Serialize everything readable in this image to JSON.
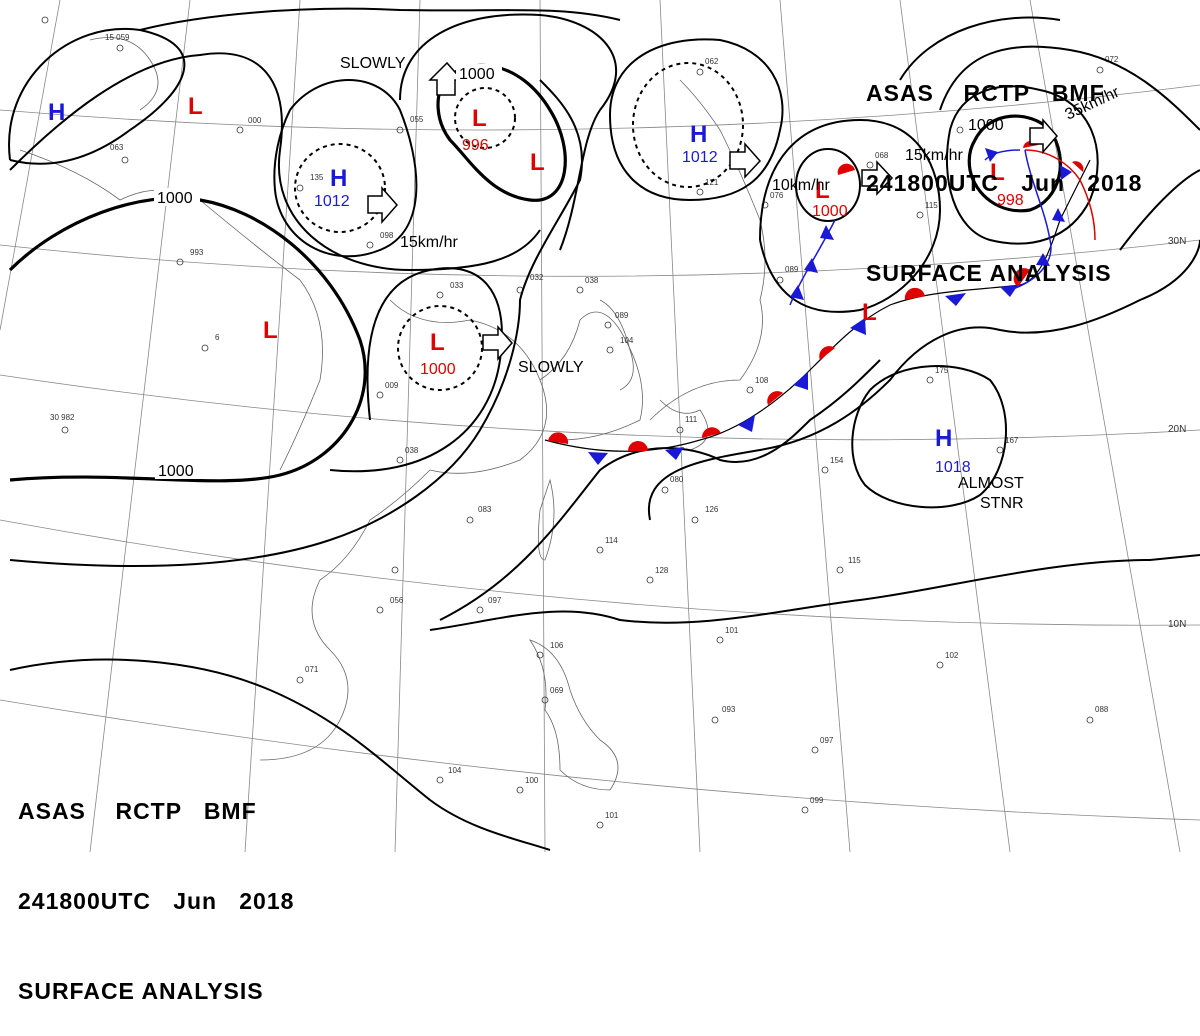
{
  "header": {
    "line1": "ASAS    RCTP   BMF",
    "line2": "241800UTC   Jun   2018",
    "line3": "SURFACE ANALYSIS"
  },
  "colors": {
    "high": "#1a1ad6",
    "low": "#e00000",
    "black": "#000000"
  },
  "pressure_centers": [
    {
      "type": "H",
      "value": ""
    },
    {
      "type": "L",
      "value": ""
    },
    {
      "type": "H",
      "value": "1012"
    },
    {
      "type": "L",
      "value": "996"
    },
    {
      "type": "L",
      "value": ""
    },
    {
      "type": "H",
      "value": "1012"
    },
    {
      "type": "L",
      "value": "1000"
    },
    {
      "type": "L",
      "value": "998"
    },
    {
      "type": "L",
      "value": ""
    },
    {
      "type": "L",
      "value": "1000"
    },
    {
      "type": "L",
      "value": ""
    },
    {
      "type": "H",
      "value": "1018"
    }
  ],
  "isobar_labels": [
    "1000",
    "1000",
    "1000",
    "1000"
  ],
  "motion_labels": [
    "SLOWLY",
    "15km/hr",
    "SLOWLY",
    "10km/hr",
    "15km/hr",
    "35km/hr",
    "ALMOST",
    "STNR"
  ],
  "latitude_labels": [
    "30N",
    "20N",
    "10N"
  ]
}
